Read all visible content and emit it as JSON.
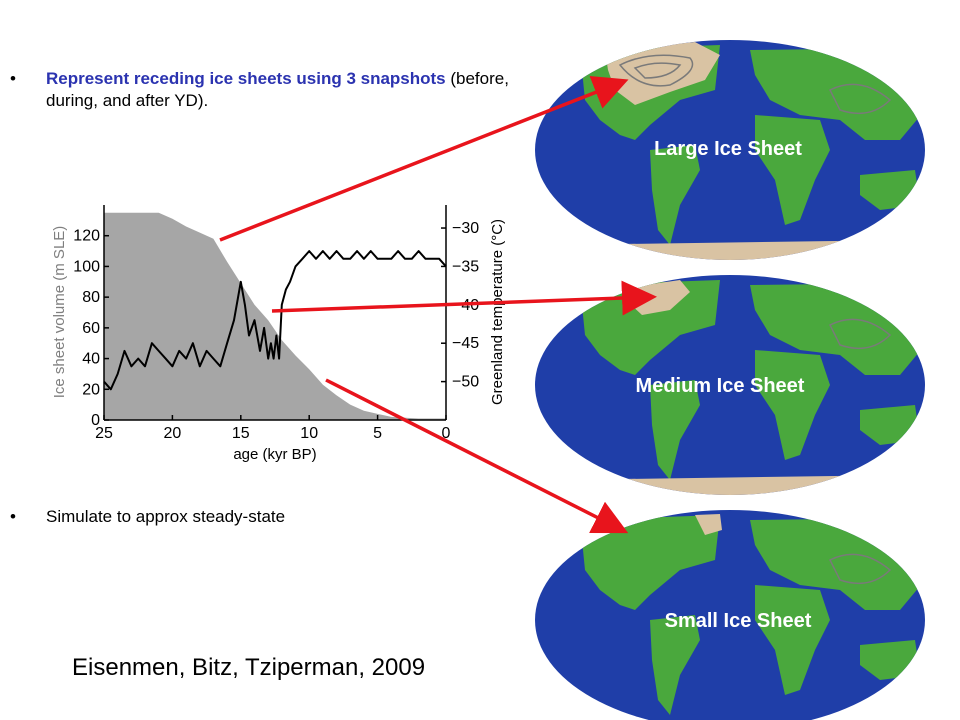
{
  "bullets": {
    "first_blue": "Represent receding ice sheets using 3 snapshots",
    "first_rest": " (before, during, and after YD).",
    "second": "Simulate to approx steady-state",
    "marker": "•"
  },
  "citation": "Eisenmen, Bitz, Tziperman, 2009",
  "maps": [
    {
      "label": "Large Ice Sheet"
    },
    {
      "label": "Medium Ice Sheet"
    },
    {
      "label": "Small Ice Sheet"
    }
  ],
  "colors": {
    "ocean": "#1f3ea8",
    "land": "#4aa83d",
    "ice": "#d9c3a3",
    "contour": "#7a7a7a",
    "arrow": "#e8141c",
    "area": "#a6a6a6"
  },
  "chart_data": {
    "type": "area",
    "xlabel": "age (kyr BP)",
    "ylabel_left": "Ice sheet volume (m SLE)",
    "ylabel_right": "Greenland temperature (°C)",
    "xlim": [
      25,
      0
    ],
    "ylim_left": [
      0,
      140
    ],
    "ylim_right": [
      -55,
      -27
    ],
    "x_ticks": [
      25,
      20,
      15,
      10,
      5,
      0
    ],
    "y_left_ticks": [
      0,
      20,
      40,
      60,
      80,
      100,
      120
    ],
    "y_right_ticks": [
      -30,
      -35,
      -40,
      -45,
      -50
    ],
    "series": [
      {
        "axis": "left",
        "kind": "area",
        "x": [
          25,
          21,
          20,
          19,
          18,
          17,
          16,
          15,
          14,
          13,
          12,
          11,
          10,
          9,
          8,
          7,
          6,
          5,
          4,
          2,
          0
        ],
        "y": [
          135,
          135,
          131,
          126,
          122,
          118,
          103,
          89,
          75,
          65,
          52,
          42,
          33,
          23,
          16,
          10,
          6,
          4,
          2,
          1,
          1
        ]
      },
      {
        "axis": "right",
        "kind": "line",
        "x": [
          25,
          24.5,
          24,
          23.5,
          23,
          22.5,
          22,
          21.5,
          21,
          20.5,
          20,
          19.5,
          19,
          18.5,
          18,
          17.5,
          17,
          16.5,
          16,
          15.5,
          15,
          14.7,
          14.4,
          14,
          13.6,
          13.3,
          13,
          12.8,
          12.6,
          12.4,
          12.2,
          12,
          11.7,
          11.4,
          11,
          10.5,
          10,
          9.5,
          9,
          8.5,
          8,
          7.5,
          7,
          6.5,
          6,
          5.5,
          5,
          4.5,
          4,
          3.5,
          3,
          2.5,
          2,
          1.5,
          1,
          0.5,
          0
        ],
        "y": [
          -50,
          -51,
          -49,
          -46,
          -48,
          -47,
          -48,
          -45,
          -46,
          -47,
          -48,
          -46,
          -47,
          -45,
          -48,
          -46,
          -47,
          -48,
          -45,
          -42,
          -37,
          -40,
          -44,
          -42,
          -46,
          -43,
          -47,
          -45,
          -47,
          -44,
          -47,
          -40,
          -38,
          -37,
          -35,
          -34,
          -33,
          -34,
          -33,
          -34,
          -33,
          -34,
          -34,
          -33,
          -34,
          -33,
          -34,
          -34,
          -34,
          -33,
          -34,
          -34,
          -33,
          -34,
          -34,
          -34,
          -35
        ]
      }
    ]
  }
}
